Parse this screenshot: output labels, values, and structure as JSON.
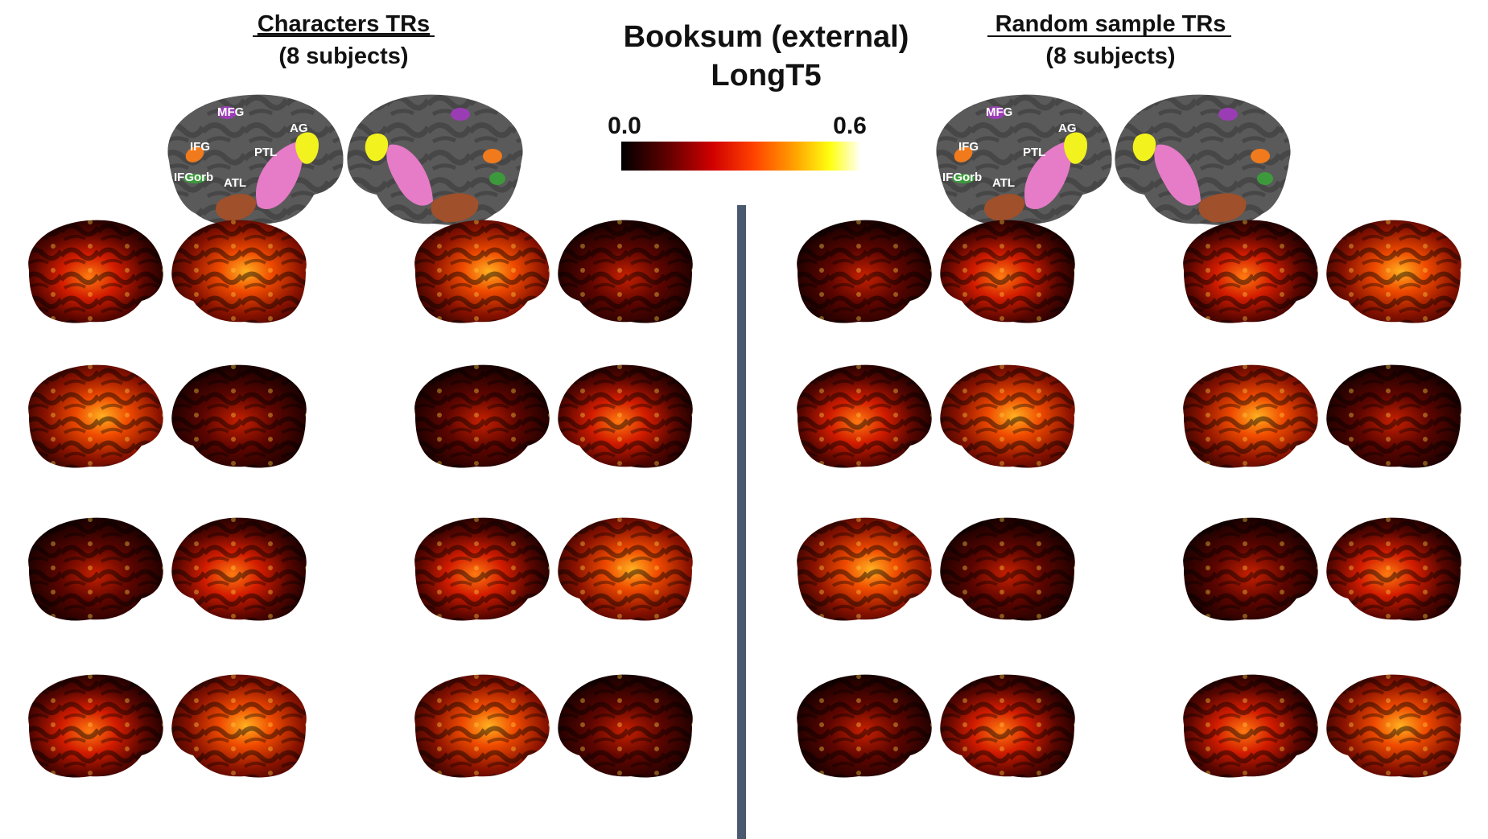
{
  "left_panel": {
    "title": "Characters TRs",
    "subtitle": "(8 subjects)",
    "roi_labels": {
      "mfg": "MFG",
      "ifg": "IFG",
      "ifgorb": "IFGorb",
      "atl": "ATL",
      "ptl": "PTL",
      "ag": "AG"
    }
  },
  "right_panel": {
    "title": "Random sample TRs",
    "subtitle": "(8 subjects)",
    "roi_labels": {
      "mfg": "MFG",
      "ifg": "IFG",
      "ifgorb": "IFGorb",
      "atl": "ATL",
      "ptl": "PTL",
      "ag": "AG"
    }
  },
  "center": {
    "title_line1": "Booksum (external)",
    "title_line2": "LongT5"
  },
  "colorbar": {
    "min_label": "0.0",
    "max_label": "0.6",
    "colormap": [
      "#000000",
      "#5a0000",
      "#c80000",
      "#ff3a00",
      "#ff9a00",
      "#ffff00",
      "#ffffff"
    ]
  },
  "roi_colors": {
    "mfg": "#9a3db5",
    "ifg": "#f07a1c",
    "ifgorb": "#3c9a3c",
    "atl": "#a0502a",
    "ptl": "#e67bc7",
    "ag": "#f2f21e"
  },
  "divider_color": "#4a5870"
}
